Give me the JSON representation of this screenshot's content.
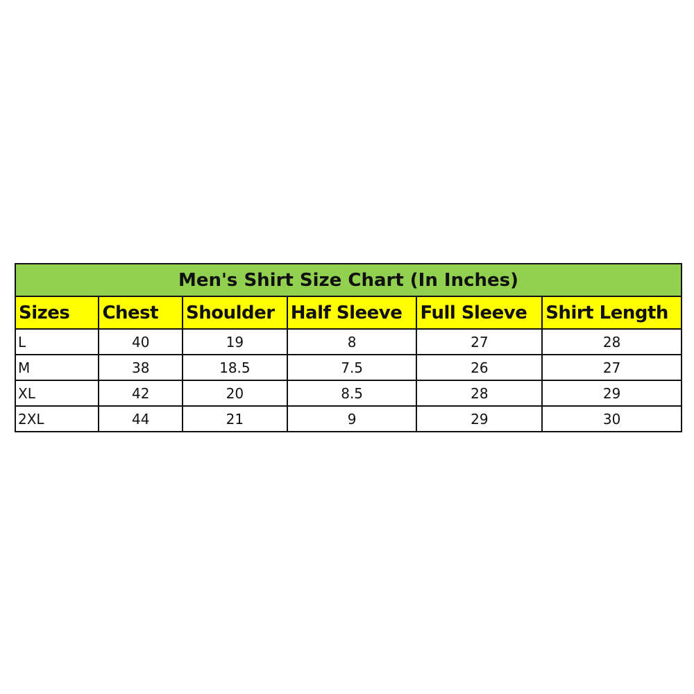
{
  "title": "Men's Shirt Size Chart (In Inches)",
  "colors": {
    "title_bg": "#92d050",
    "header_bg": "#ffff00"
  },
  "headers": [
    "Sizes",
    "Chest",
    "Shoulder",
    "Half Sleeve",
    "Full Sleeve",
    "Shirt Length"
  ],
  "rows": [
    [
      "L",
      "40",
      "19",
      "8",
      "27",
      "28"
    ],
    [
      "M",
      "38",
      "18.5",
      "7.5",
      "26",
      "27"
    ],
    [
      "XL",
      "42",
      "20",
      "8.5",
      "28",
      "29"
    ],
    [
      "2XL",
      "44",
      "21",
      "9",
      "29",
      "30"
    ]
  ]
}
